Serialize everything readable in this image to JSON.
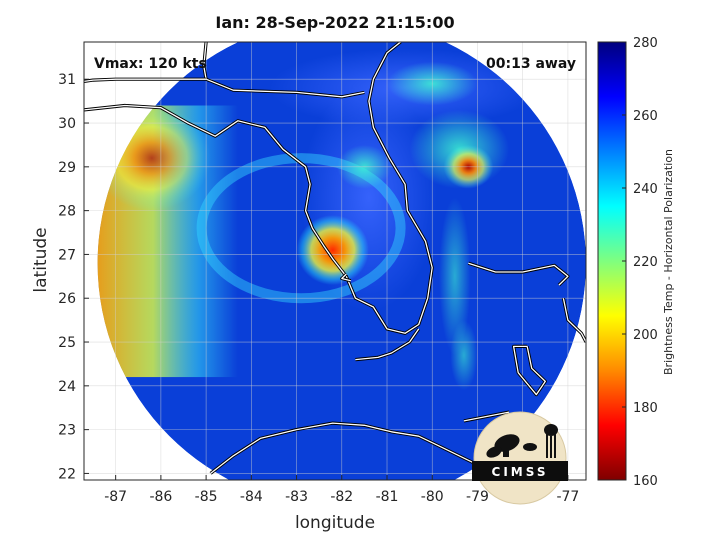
{
  "title": "Ian: 28-Sep-2022 21:15:00",
  "annotations": {
    "vmax": "Vmax: 120 kts",
    "away": "00:13 away"
  },
  "logo": {
    "text": "CIMSS"
  },
  "chart_data": {
    "type": "heatmap",
    "title": "Ian: 28-Sep-2022 21:15:00",
    "xlabel": "longitude",
    "ylabel": "latitude",
    "xlim": [
      -87.7,
      -76.6
    ],
    "ylim": [
      21.85,
      31.85
    ],
    "xticks": [
      -87,
      -86,
      -85,
      -84,
      -83,
      -82,
      -81,
      -80,
      -79,
      -78,
      -77
    ],
    "yticks": [
      22,
      23,
      24,
      25,
      26,
      27,
      28,
      29,
      30,
      31
    ],
    "grid": true,
    "swath": {
      "center_lon": -82.0,
      "center_lat": 26.8,
      "radius_deg": 5.4
    },
    "storm_center": {
      "lon": -82.2,
      "lat": 27.1
    },
    "colorbar": {
      "label": "Brightness Temp - Horizontal Polarization",
      "min": 160,
      "max": 280,
      "ticks": [
        160,
        180,
        200,
        220,
        240,
        260,
        280
      ],
      "colors": [
        "#7f0000",
        "#ff0000",
        "#ff8a00",
        "#ffff00",
        "#7fff7f",
        "#00ffff",
        "#0080ff",
        "#0000ff",
        "#00007f"
      ]
    }
  }
}
